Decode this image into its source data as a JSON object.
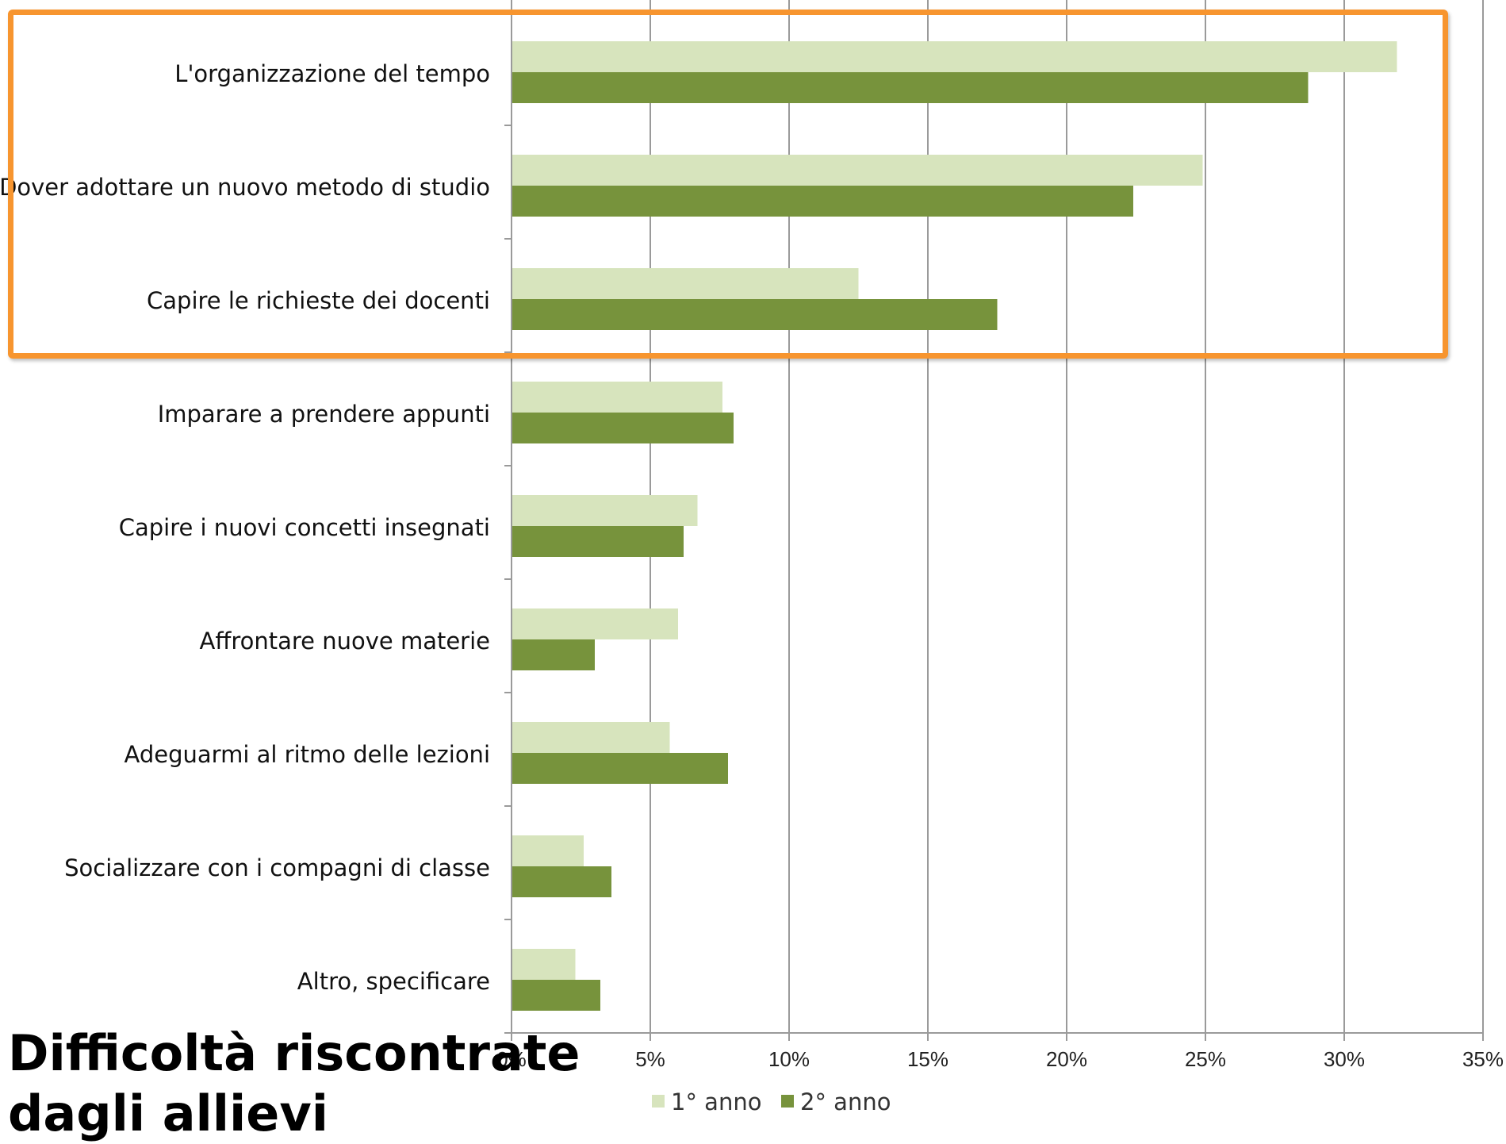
{
  "title": "Difficoltà riscontrate dagli allievi",
  "colors": {
    "series_1": "#d7e4bd",
    "series_2": "#77933c",
    "grid": "#9a9a9a",
    "highlight": "#f7952f"
  },
  "highlight": {
    "categories": [
      "L'organizzazione del tempo",
      "Dover adottare un nuovo metodo di studio",
      "Capire le richieste dei docenti"
    ]
  },
  "chart_data": {
    "type": "bar",
    "orientation": "horizontal",
    "categories": [
      "L'organizzazione del tempo",
      "Dover adottare un nuovo metodo di studio",
      "Capire le richieste dei docenti",
      "Imparare a prendere appunti",
      "Capire i nuovi concetti insegnati",
      "Affrontare nuove materie",
      "Adeguarmi al ritmo delle lezioni",
      "Socializzare con i compagni di classe",
      "Altro, specificare"
    ],
    "series": [
      {
        "name": "1° anno",
        "values": [
          31.9,
          24.9,
          12.5,
          7.6,
          6.7,
          6.0,
          5.7,
          2.6,
          2.3
        ]
      },
      {
        "name": "2° anno",
        "values": [
          28.7,
          22.4,
          17.5,
          8.0,
          6.2,
          3.0,
          7.8,
          3.6,
          3.2
        ]
      }
    ],
    "x_ticks": [
      "0%",
      "5%",
      "10%",
      "15%",
      "20%",
      "25%",
      "30%",
      "35%"
    ],
    "xlim": [
      0,
      35
    ],
    "grid": true,
    "legend_position": "bottom"
  }
}
